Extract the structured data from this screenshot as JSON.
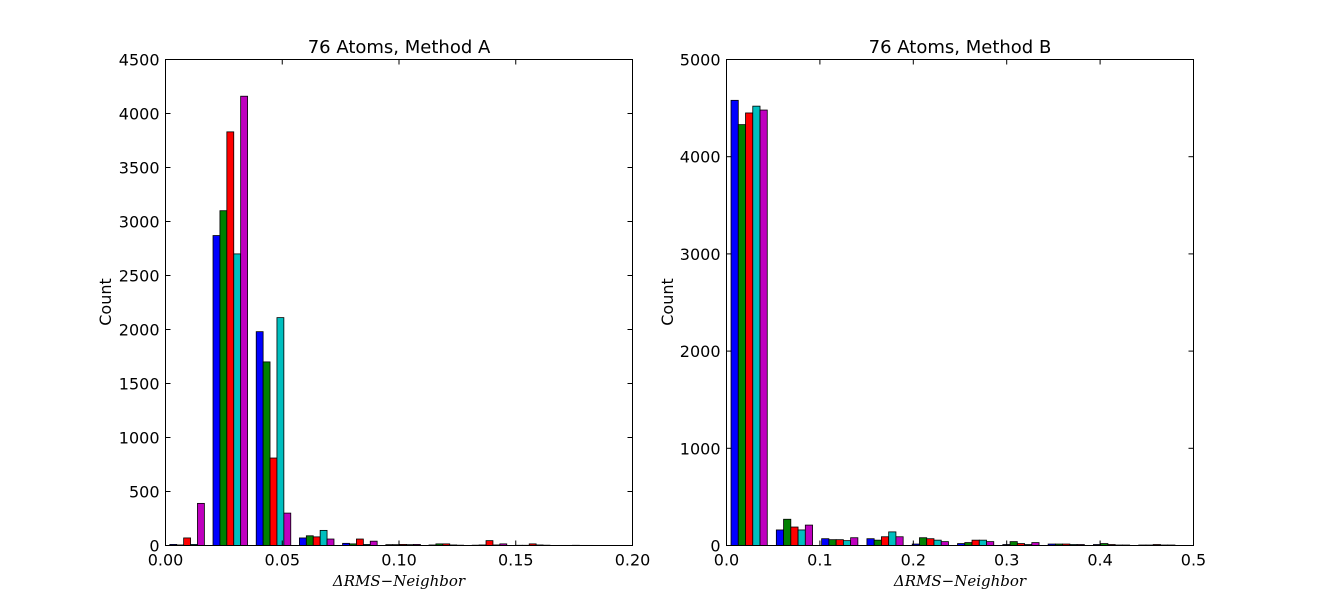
{
  "chart_data": [
    {
      "type": "bar",
      "title": "76 Atoms, Method A",
      "xlabel": "ΔRMS−Neighbor",
      "ylabel": "Count",
      "xlim": [
        0.0,
        0.2
      ],
      "ylim": [
        0,
        4500
      ],
      "xticks": [
        "0.00",
        "0.05",
        "0.10",
        "0.15",
        "0.20"
      ],
      "yticks": [
        "0",
        "500",
        "1000",
        "1500",
        "2000",
        "2500",
        "3000",
        "3500",
        "4000",
        "4500"
      ],
      "grid": false,
      "bin_edges": [
        0.0,
        0.0185,
        0.037,
        0.0555,
        0.074,
        0.0925,
        0.111,
        0.1295,
        0.148,
        0.1665,
        0.185
      ],
      "series": [
        {
          "color": "#0000ff",
          "values": [
            10,
            2870,
            1980,
            70,
            20,
            8,
            5,
            3,
            2,
            1
          ]
        },
        {
          "color": "#008000",
          "values": [
            5,
            3100,
            1700,
            90,
            15,
            8,
            15,
            5,
            2,
            1
          ]
        },
        {
          "color": "#ff0000",
          "values": [
            70,
            3830,
            810,
            80,
            60,
            10,
            15,
            45,
            15,
            2
          ]
        },
        {
          "color": "#00bfbf",
          "values": [
            10,
            2700,
            2110,
            140,
            10,
            8,
            5,
            5,
            5,
            1
          ]
        },
        {
          "color": "#bf00bf",
          "values": [
            390,
            4160,
            300,
            60,
            40,
            10,
            3,
            15,
            3,
            1
          ]
        }
      ]
    },
    {
      "type": "bar",
      "title": "76 Atoms, Method B",
      "xlabel": "ΔRMS−Neighbor",
      "ylabel": "Count",
      "xlim": [
        0.0,
        0.5
      ],
      "ylim": [
        0,
        5000
      ],
      "xticks": [
        "0.0",
        "0.1",
        "0.2",
        "0.3",
        "0.4",
        "0.5"
      ],
      "yticks": [
        "0",
        "1000",
        "2000",
        "3000",
        "4000",
        "5000"
      ],
      "grid": false,
      "bin_edges": [
        0.0,
        0.0485,
        0.097,
        0.1455,
        0.194,
        0.2425,
        0.291,
        0.3395,
        0.388,
        0.4365,
        0.485
      ],
      "series": [
        {
          "color": "#0000ff",
          "values": [
            4580,
            160,
            70,
            70,
            15,
            20,
            10,
            15,
            10,
            5
          ]
        },
        {
          "color": "#008000",
          "values": [
            4330,
            270,
            60,
            55,
            80,
            30,
            40,
            15,
            20,
            5
          ]
        },
        {
          "color": "#ff0000",
          "values": [
            4450,
            190,
            60,
            90,
            70,
            55,
            20,
            15,
            10,
            10
          ]
        },
        {
          "color": "#00bfbf",
          "values": [
            4520,
            160,
            50,
            140,
            55,
            55,
            10,
            10,
            5,
            5
          ]
        },
        {
          "color": "#bf00bf",
          "values": [
            4480,
            210,
            80,
            90,
            40,
            40,
            30,
            10,
            5,
            5
          ]
        }
      ]
    }
  ]
}
